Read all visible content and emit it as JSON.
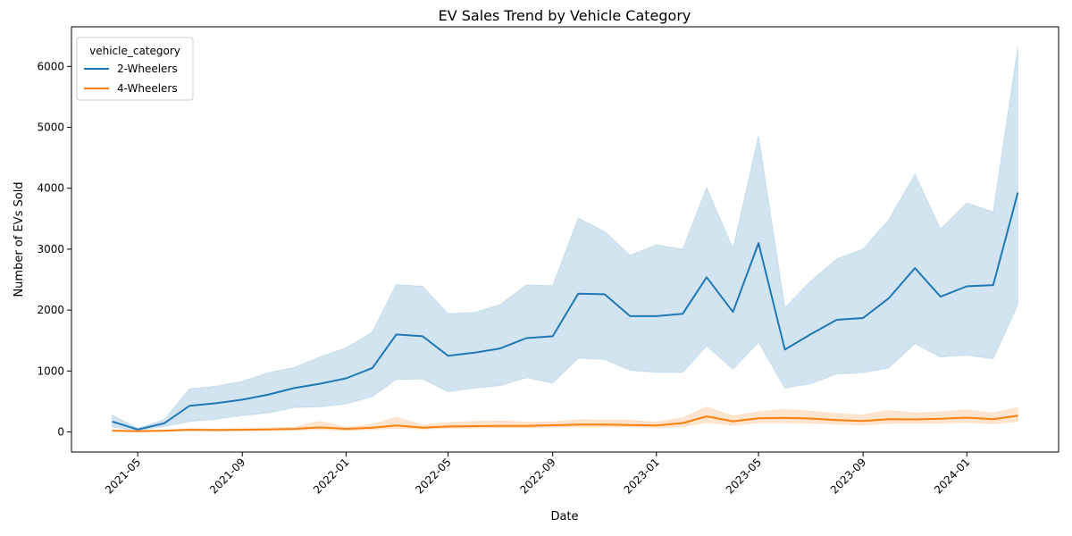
{
  "chart_data": {
    "type": "line",
    "title": "EV Sales Trend by Vehicle Category",
    "xlabel": "Date",
    "ylabel": "Number of EVs Sold",
    "x": [
      "2021-04",
      "2021-05",
      "2021-06",
      "2021-07",
      "2021-08",
      "2021-09",
      "2021-10",
      "2021-11",
      "2021-12",
      "2022-01",
      "2022-02",
      "2022-03",
      "2022-04",
      "2022-05",
      "2022-06",
      "2022-07",
      "2022-08",
      "2022-09",
      "2022-10",
      "2022-11",
      "2022-12",
      "2023-01",
      "2023-02",
      "2023-03",
      "2023-04",
      "2023-05",
      "2023-06",
      "2023-07",
      "2023-08",
      "2023-09",
      "2023-10",
      "2023-11",
      "2023-12",
      "2024-01",
      "2024-02",
      "2024-03"
    ],
    "xticks": [
      "2021-05",
      "2021-09",
      "2022-01",
      "2022-05",
      "2022-09",
      "2023-01",
      "2023-05",
      "2023-09",
      "2024-01"
    ],
    "yticks": [
      0,
      1000,
      2000,
      3000,
      4000,
      5000,
      6000
    ],
    "ylim": [
      -330,
      6650
    ],
    "legend": {
      "title": "vehicle_category",
      "placement": "upper-left"
    },
    "grid": false,
    "series": [
      {
        "name": "2-Wheelers",
        "color": "#1f77b4",
        "values": [
          170,
          40,
          140,
          430,
          470,
          530,
          610,
          720,
          790,
          880,
          1050,
          1600,
          1570,
          1250,
          1300,
          1370,
          1540,
          1570,
          2270,
          2260,
          1900,
          1900,
          1940,
          2540,
          1970,
          3100,
          1350,
          1600,
          1840,
          1870,
          2190,
          2690,
          2220,
          2390,
          2410,
          3930
        ],
        "ci_low": [
          80,
          20,
          90,
          170,
          210,
          270,
          310,
          400,
          410,
          460,
          580,
          860,
          870,
          660,
          720,
          760,
          890,
          800,
          1210,
          1190,
          1010,
          980,
          980,
          1410,
          1030,
          1470,
          720,
          790,
          950,
          970,
          1050,
          1450,
          1230,
          1260,
          1200,
          2090
        ],
        "ci_high": [
          280,
          60,
          200,
          710,
          750,
          830,
          970,
          1060,
          1230,
          1380,
          1640,
          2420,
          2390,
          1940,
          1960,
          2090,
          2410,
          2400,
          3510,
          3290,
          2900,
          3070,
          3000,
          4010,
          3010,
          4860,
          2040,
          2470,
          2840,
          3000,
          3480,
          4230,
          3330,
          3760,
          3610,
          6320
        ]
      },
      {
        "name": "4-Wheelers",
        "color": "#ff7f0e",
        "values": [
          20,
          10,
          20,
          35,
          30,
          35,
          40,
          50,
          75,
          50,
          70,
          105,
          70,
          90,
          95,
          100,
          100,
          110,
          120,
          120,
          115,
          105,
          145,
          255,
          175,
          225,
          230,
          220,
          195,
          180,
          210,
          205,
          215,
          235,
          210,
          265
        ],
        "ci_low": [
          10,
          5,
          10,
          20,
          15,
          20,
          25,
          30,
          40,
          25,
          40,
          60,
          45,
          60,
          65,
          70,
          70,
          75,
          85,
          85,
          80,
          70,
          90,
          155,
          110,
          150,
          150,
          145,
          130,
          115,
          140,
          140,
          145,
          155,
          135,
          170
        ],
        "ci_high": [
          35,
          15,
          30,
          55,
          50,
          55,
          60,
          75,
          175,
          80,
          120,
          240,
          110,
          150,
          175,
          180,
          165,
          165,
          200,
          195,
          190,
          160,
          230,
          410,
          260,
          330,
          370,
          340,
          300,
          280,
          350,
          310,
          325,
          360,
          310,
          400
        ]
      }
    ]
  }
}
